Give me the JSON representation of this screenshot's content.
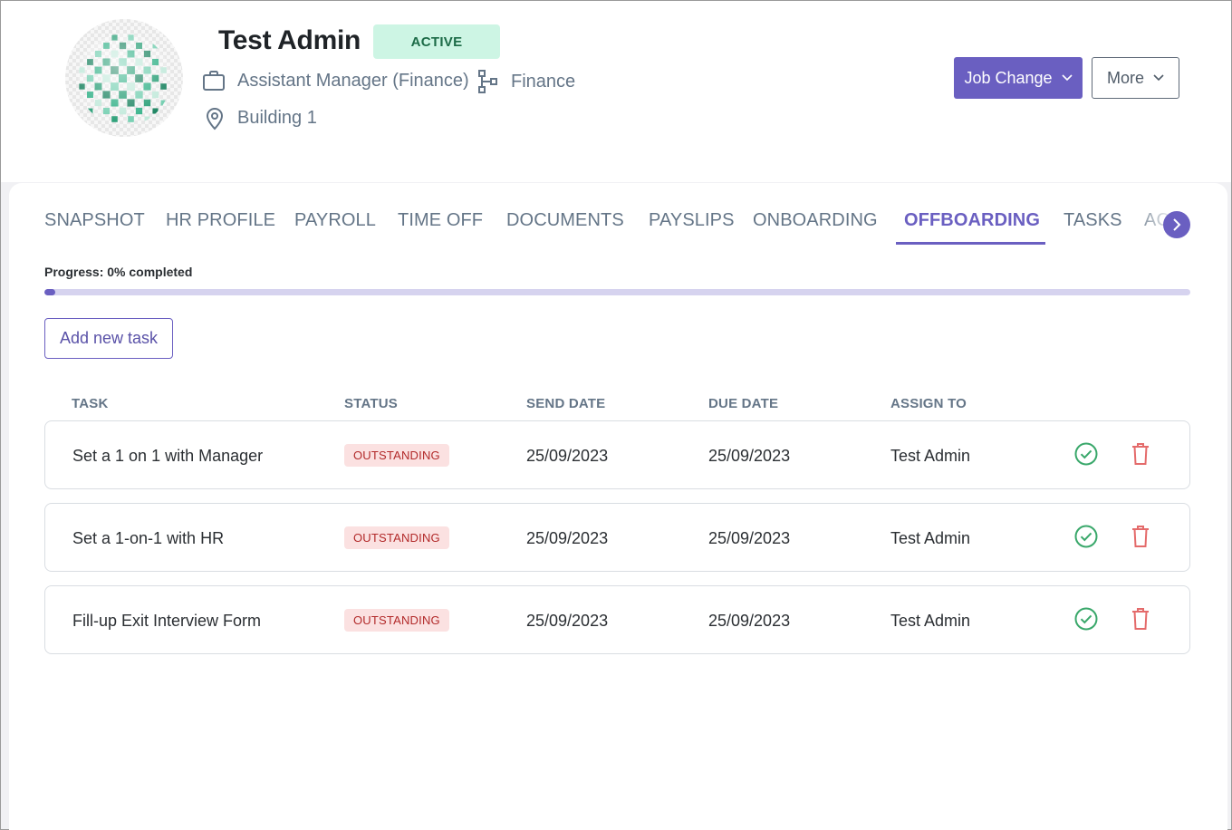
{
  "profile": {
    "name": "Test Admin",
    "status": "ACTIVE",
    "position": "Assistant Manager (Finance)",
    "department": "Finance",
    "location": "Building 1",
    "icons": {
      "position": "briefcase-icon",
      "department": "org-chart-icon",
      "location": "map-pin-icon"
    }
  },
  "actions": {
    "job_change_label": "Job Change",
    "more_label": "More"
  },
  "tabs": [
    {
      "label": "SNAPSHOT",
      "active": false
    },
    {
      "label": "HR PROFILE",
      "active": false
    },
    {
      "label": "PAYROLL",
      "active": false
    },
    {
      "label": "TIME OFF",
      "active": false
    },
    {
      "label": "DOCUMENTS",
      "active": false
    },
    {
      "label": "PAYSLIPS",
      "active": false
    },
    {
      "label": "ONBOARDING",
      "active": false
    },
    {
      "label": "OFFBOARDING",
      "active": true
    },
    {
      "label": "TASKS",
      "active": false
    },
    {
      "label": "AC",
      "active": false
    }
  ],
  "progress": {
    "label": "Progress: 0% completed",
    "percent": 0
  },
  "add_task_label": "Add new task",
  "table": {
    "headers": {
      "task": "TASK",
      "status": "STATUS",
      "send_date": "SEND DATE",
      "due_date": "DUE DATE",
      "assign_to": "ASSIGN TO"
    },
    "rows": [
      {
        "task": "Set a 1 on 1 with Manager",
        "status": "OUTSTANDING",
        "send_date": "25/09/2023",
        "due_date": "25/09/2023",
        "assign_to": "Test Admin"
      },
      {
        "task": "Set a 1-on-1 with HR",
        "status": "OUTSTANDING",
        "send_date": "25/09/2023",
        "due_date": "25/09/2023",
        "assign_to": "Test Admin"
      },
      {
        "task": "Fill-up Exit Interview Form",
        "status": "OUTSTANDING",
        "send_date": "25/09/2023",
        "due_date": "25/09/2023",
        "assign_to": "Test Admin"
      }
    ]
  },
  "colors": {
    "accent": "#6a5fc1",
    "active_badge_bg": "#cdf5e4",
    "outstanding_badge_bg": "#fbe1e1",
    "complete_icon": "#3aa86b",
    "delete_icon": "#e46b6b"
  }
}
